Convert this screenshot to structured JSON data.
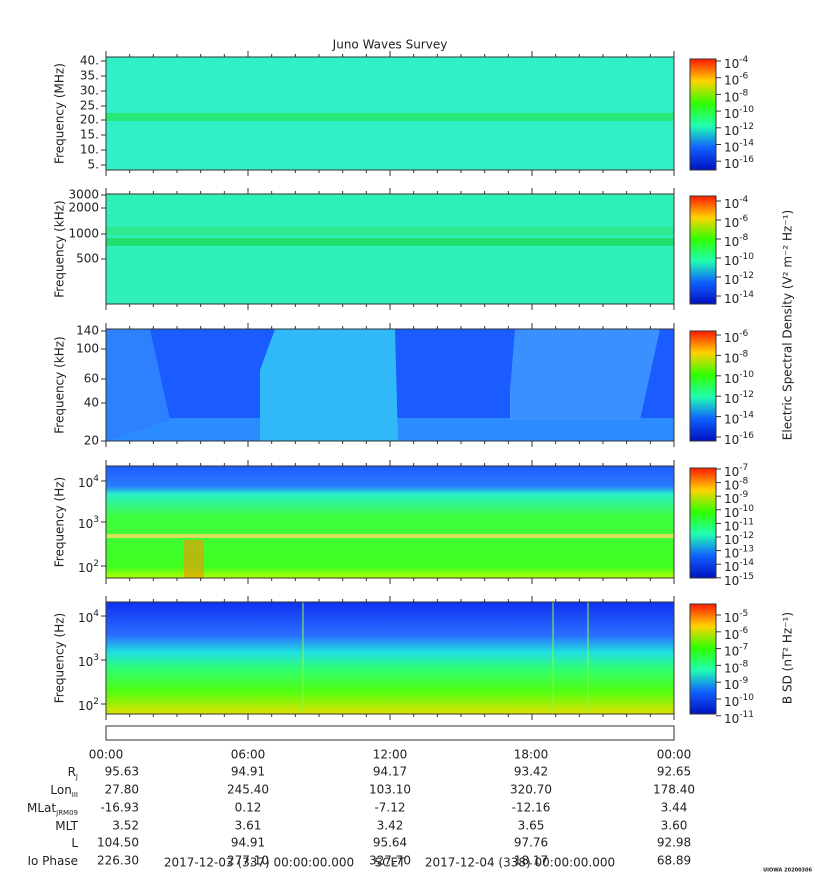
{
  "title": "Juno Waves Survey",
  "panels": [
    {
      "ylabel": "Frequency (MHz)",
      "yticks": [
        "40.",
        "35.",
        "30.",
        "25.",
        "20.",
        "15.",
        "10.",
        "5."
      ],
      "cbticks": [
        {
          "base": "10",
          "exp": "-4"
        },
        {
          "base": "10",
          "exp": "-6"
        },
        {
          "base": "10",
          "exp": "-8"
        },
        {
          "base": "10",
          "exp": "-10"
        },
        {
          "base": "10",
          "exp": "-12"
        },
        {
          "base": "10",
          "exp": "-14"
        },
        {
          "base": "10",
          "exp": "-16"
        }
      ]
    },
    {
      "ylabel": "Frequency (kHz)",
      "yticks": [
        "3000",
        "2000",
        "1000",
        "500"
      ],
      "cbticks": [
        {
          "base": "10",
          "exp": "-4"
        },
        {
          "base": "10",
          "exp": "-6"
        },
        {
          "base": "10",
          "exp": "-8"
        },
        {
          "base": "10",
          "exp": "-10"
        },
        {
          "base": "10",
          "exp": "-12"
        },
        {
          "base": "10",
          "exp": "-14"
        }
      ]
    },
    {
      "ylabel": "Frequency (kHz)",
      "yticks": [
        "140",
        "100",
        "60",
        "40",
        "20"
      ],
      "cbticks": [
        {
          "base": "10",
          "exp": "-6"
        },
        {
          "base": "10",
          "exp": "-8"
        },
        {
          "base": "10",
          "exp": "-10"
        },
        {
          "base": "10",
          "exp": "-12"
        },
        {
          "base": "10",
          "exp": "-14"
        },
        {
          "base": "10",
          "exp": "-16"
        }
      ]
    },
    {
      "ylabel": "Frequency (Hz)",
      "yticks": [
        {
          "base": "10",
          "exp": "4"
        },
        {
          "base": "10",
          "exp": "3"
        },
        {
          "base": "10",
          "exp": "2"
        }
      ],
      "cbticks": [
        {
          "base": "10",
          "exp": "-7"
        },
        {
          "base": "10",
          "exp": "-8"
        },
        {
          "base": "10",
          "exp": "-9"
        },
        {
          "base": "10",
          "exp": "-10"
        },
        {
          "base": "10",
          "exp": "-11"
        },
        {
          "base": "10",
          "exp": "-12"
        },
        {
          "base": "10",
          "exp": "-13"
        },
        {
          "base": "10",
          "exp": "-14"
        },
        {
          "base": "10",
          "exp": "-15"
        }
      ]
    },
    {
      "ylabel": "Frequency (Hz)",
      "yticks": [
        {
          "base": "10",
          "exp": "4"
        },
        {
          "base": "10",
          "exp": "3"
        },
        {
          "base": "10",
          "exp": "2"
        }
      ],
      "cbticks": [
        {
          "base": "10",
          "exp": "-5"
        },
        {
          "base": "10",
          "exp": "-6"
        },
        {
          "base": "10",
          "exp": "-7"
        },
        {
          "base": "10",
          "exp": "-8"
        },
        {
          "base": "10",
          "exp": "-9"
        },
        {
          "base": "10",
          "exp": "-10"
        },
        {
          "base": "10",
          "exp": "-11"
        }
      ]
    }
  ],
  "colorbar_labels": [
    "Electric Spectral Density (V² m⁻² Hz⁻¹)",
    "B SD (nT² Hz⁻¹)"
  ],
  "time_ticks": [
    "00:00",
    "06:00",
    "12:00",
    "18:00",
    "00:00"
  ],
  "ephemeris": [
    {
      "label": "R",
      "sub": "J",
      "values": [
        "95.63",
        "94.91",
        "94.17",
        "93.42",
        "92.65"
      ]
    },
    {
      "label": "Lon",
      "sub": "III",
      "values": [
        "27.80",
        "245.40",
        "103.10",
        "320.70",
        "178.40"
      ]
    },
    {
      "label": "MLat",
      "sub": "JRM09",
      "values": [
        "-16.93",
        "0.12",
        "-7.12",
        "-12.16",
        "3.44"
      ]
    },
    {
      "label": "MLT",
      "values": [
        "3.52",
        "3.61",
        "3.42",
        "3.65",
        "3.60"
      ]
    },
    {
      "label": "L",
      "values": [
        "104.50",
        "94.91",
        "95.64",
        "97.76",
        "92.98"
      ]
    },
    {
      "label": "Io Phase",
      "values": [
        "226.30",
        "277.10",
        "327.70",
        "18.17",
        "68.89"
      ]
    }
  ],
  "footer": {
    "start": "2017-12-03 (337) 00:00:00.000",
    "frame": "SCET",
    "end": "2017-12-04 (338) 00:00:00.000"
  },
  "stamp": "UIOWA 20200306"
}
